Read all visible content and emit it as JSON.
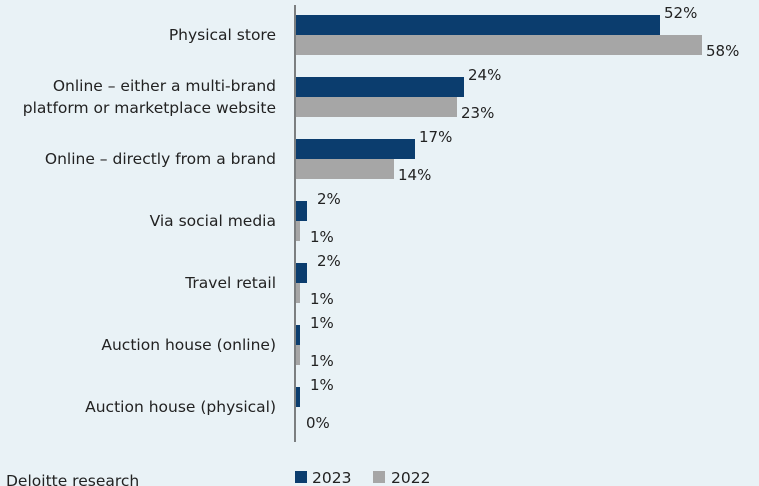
{
  "chart_data": {
    "type": "bar",
    "orientation": "horizontal",
    "categories": [
      [
        "Physical store"
      ],
      [
        "Online – either a multi-brand",
        "platform or marketplace website"
      ],
      [
        "Online – directly from a brand"
      ],
      [
        "Via social media"
      ],
      [
        "Travel retail"
      ],
      [
        "Auction house (online)"
      ],
      [
        "Auction house (physical)"
      ]
    ],
    "series": [
      {
        "name": "2023",
        "color": "#0b3d6e",
        "values": [
          52,
          24,
          17,
          2,
          2,
          1,
          1
        ],
        "labels": [
          "52%",
          "24%",
          "17%",
          "2%",
          "2%",
          "1%",
          "1%"
        ]
      },
      {
        "name": "2022",
        "color": "#a6a6a6",
        "values": [
          58,
          23,
          14,
          1,
          1,
          1,
          0
        ],
        "labels": [
          "58%",
          "23%",
          "14%",
          "1%",
          "1%",
          "1%",
          "0%"
        ]
      }
    ],
    "xlim": [
      0,
      60
    ],
    "grid": false,
    "legend_position": "bottom"
  },
  "source_text": "Deloitte research"
}
